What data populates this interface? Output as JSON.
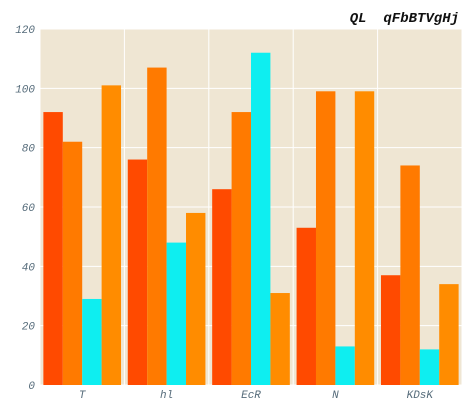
{
  "chart_data": {
    "type": "bar",
    "title": "QL  qFbBTVgHj",
    "xlabel": "",
    "ylabel": "",
    "categories": [
      "T",
      "hl",
      "EcR",
      "N",
      "KDsK"
    ],
    "ylim": [
      0,
      120
    ],
    "yticks": [
      "0",
      "20",
      "40",
      "60",
      "80",
      "100",
      "120"
    ],
    "grid": true,
    "legend": "none",
    "series": [
      {
        "color": "#ff4a00",
        "values": [
          92,
          76,
          66,
          53,
          37
        ]
      },
      {
        "color": "#ff7a00",
        "values": [
          82,
          107,
          92,
          99,
          74
        ]
      },
      {
        "color": "#0eeef0",
        "values": [
          29,
          48,
          112,
          13,
          12
        ]
      },
      {
        "color": "#ff8c00",
        "values": [
          101,
          58,
          31,
          99,
          34
        ]
      }
    ],
    "background_color": "#efe6d3",
    "grid_color": "#ffffff"
  }
}
